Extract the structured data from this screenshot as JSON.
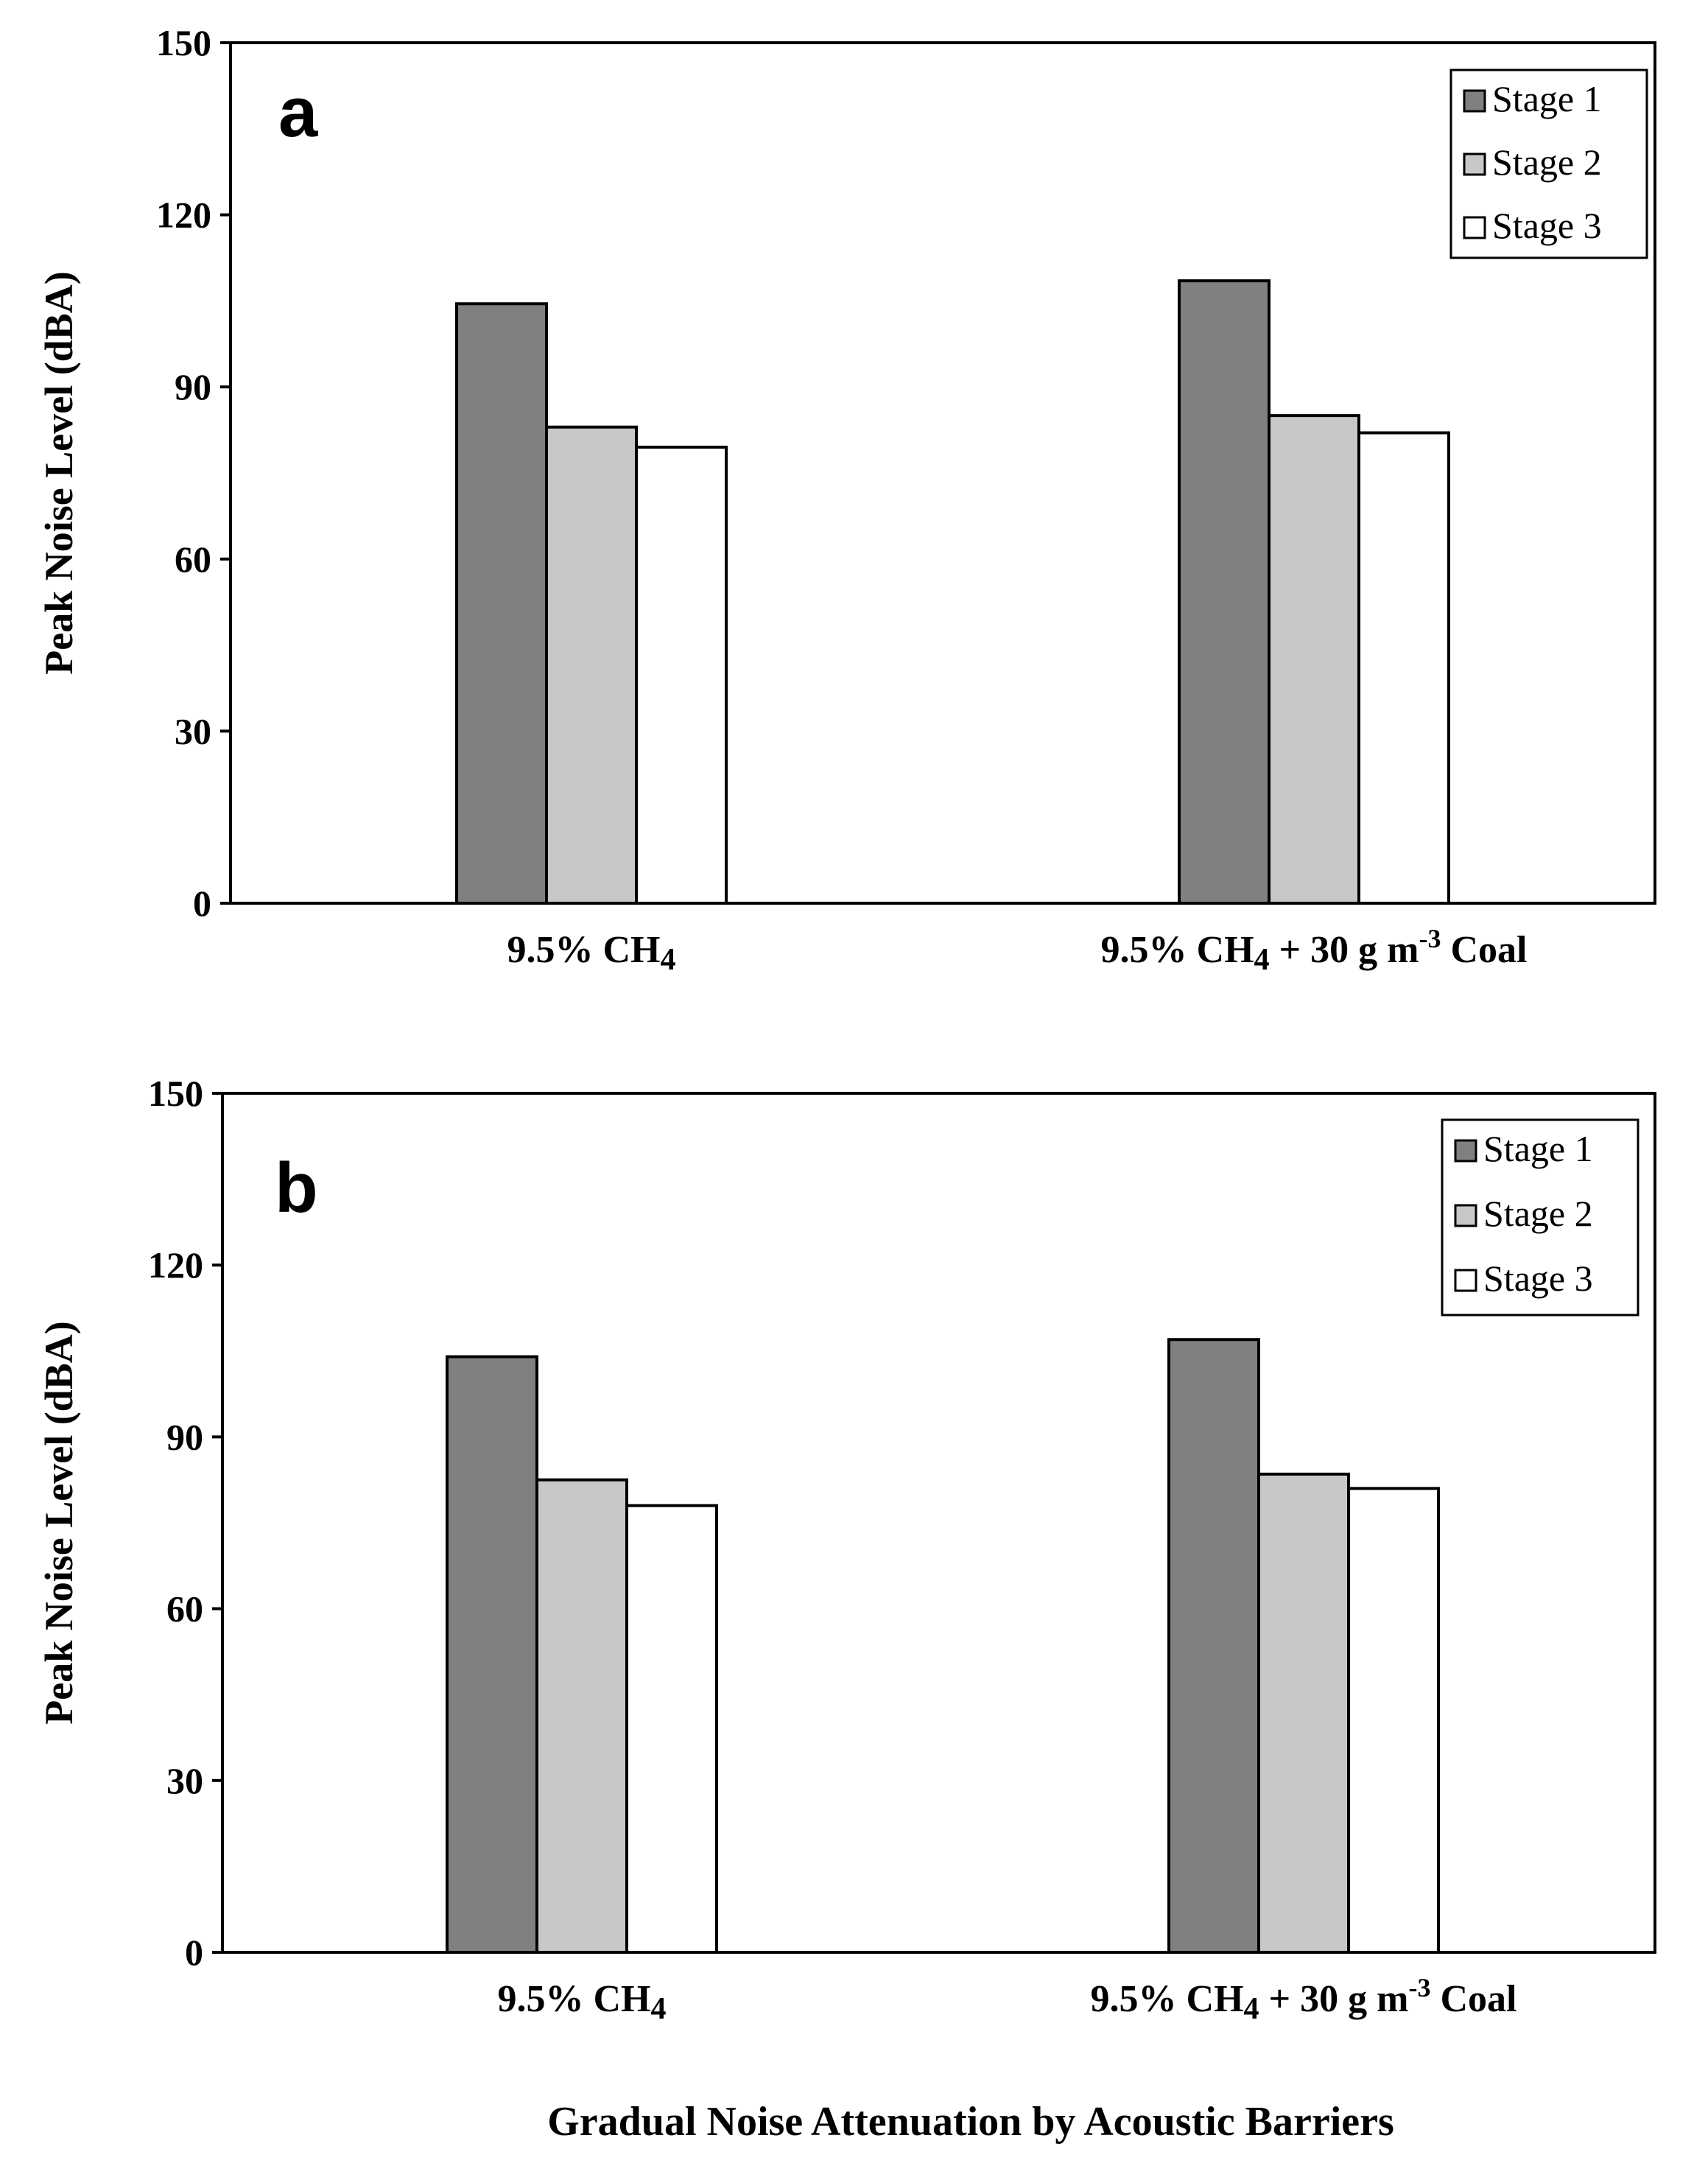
{
  "figure": {
    "xlabel": "Gradual Noise Attenuation by Acoustic Barriers"
  },
  "chart_data": [
    {
      "type": "bar",
      "panel_label": "a",
      "categories": [
        {
          "pre": "9.5% CH",
          "sub": "4",
          "post": "",
          "sup": "",
          "tail": ""
        },
        {
          "pre": "9.5% CH",
          "sub": "4",
          "post": " + 30 g m",
          "sup": "-3",
          "tail": " Coal"
        }
      ],
      "series": [
        {
          "name": "Stage 1",
          "color": "#808080",
          "values": [
            104.5,
            108.5
          ]
        },
        {
          "name": "Stage 2",
          "color": "#c8c8c8",
          "values": [
            83,
            85
          ]
        },
        {
          "name": "Stage 3",
          "color": "#ffffff",
          "values": [
            79.5,
            82
          ]
        }
      ],
      "ylabel": "Peak Noise Level (dBA)",
      "ylim": [
        0,
        150
      ],
      "yticks": [
        0,
        30,
        60,
        90,
        120,
        150
      ],
      "legend": "top-right",
      "grid": false
    },
    {
      "type": "bar",
      "panel_label": "b",
      "categories": [
        {
          "pre": "9.5% CH",
          "sub": "4",
          "post": "",
          "sup": "",
          "tail": ""
        },
        {
          "pre": "9.5% CH",
          "sub": "4",
          "post": " + 30 g m",
          "sup": "-3",
          "tail": " Coal"
        }
      ],
      "series": [
        {
          "name": "Stage 1",
          "color": "#808080",
          "values": [
            104,
            107
          ]
        },
        {
          "name": "Stage 2",
          "color": "#c8c8c8",
          "values": [
            82.5,
            83.5
          ]
        },
        {
          "name": "Stage 3",
          "color": "#ffffff",
          "values": [
            78,
            81
          ]
        }
      ],
      "ylabel": "Peak Noise Level (dBA)",
      "ylim": [
        0,
        150
      ],
      "yticks": [
        0,
        30,
        60,
        90,
        120,
        150
      ],
      "legend": "top-right",
      "grid": false
    }
  ]
}
